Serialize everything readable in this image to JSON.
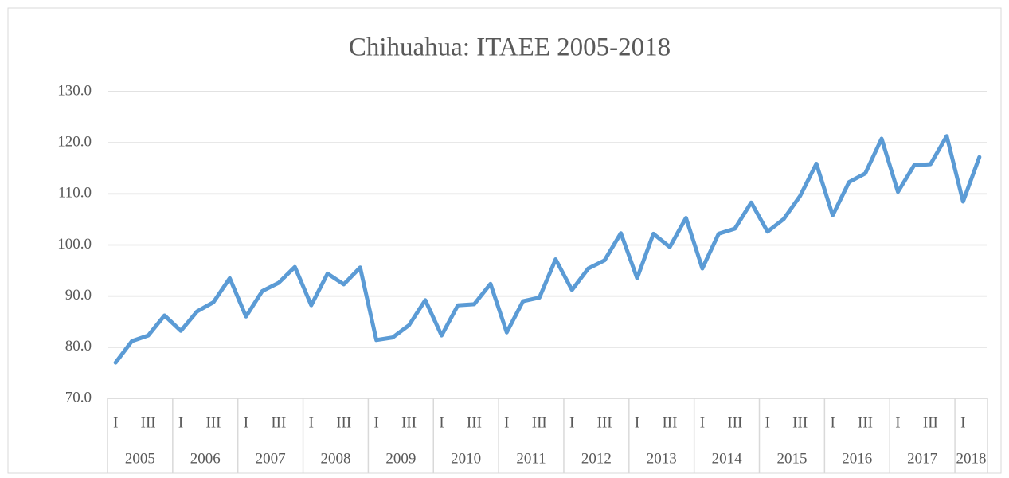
{
  "chart_data": {
    "type": "line",
    "title": "Chihuahua:  ITAEE 2005-2018",
    "categories": [
      "I",
      null,
      "III",
      null,
      "I",
      null,
      "III",
      null,
      "I",
      null,
      "III",
      null,
      "I",
      null,
      "III",
      null,
      "I",
      null,
      "III",
      null,
      "I",
      null,
      "III",
      null,
      "I",
      null,
      "III",
      null,
      "I",
      null,
      "III",
      null,
      "I",
      null,
      "III",
      null,
      "I",
      null,
      "III",
      null,
      "I",
      null,
      "III",
      null,
      "I",
      null,
      "III",
      null,
      "I",
      null,
      "III",
      null,
      "I",
      null
    ],
    "category_groups": [
      "2005",
      "2006",
      "2007",
      "2008",
      "2009",
      "2010",
      "2011",
      "2012",
      "2013",
      "2014",
      "2015",
      "2016",
      "2017",
      "2018"
    ],
    "series": [
      {
        "name": "ITAEE",
        "color": "#5b9bd5",
        "values": [
          77.0,
          81.2,
          82.3,
          86.2,
          83.2,
          87.0,
          88.8,
          93.5,
          86.0,
          91.0,
          92.6,
          95.7,
          88.2,
          94.4,
          92.3,
          95.6,
          81.4,
          81.9,
          84.3,
          89.2,
          82.3,
          88.2,
          88.4,
          92.4,
          82.9,
          89.0,
          89.7,
          97.2,
          91.2,
          95.4,
          97.0,
          102.3,
          93.5,
          102.2,
          99.6,
          105.3,
          95.4,
          102.2,
          103.2,
          108.3,
          102.6,
          105.1,
          109.6,
          115.9,
          105.8,
          112.3,
          114.0,
          120.8,
          110.4,
          115.6,
          115.8,
          121.3,
          108.5,
          117.2
        ]
      }
    ],
    "ylim": [
      70,
      130
    ],
    "yticks": [
      {
        "value": 70,
        "label": "70.0"
      },
      {
        "value": 80,
        "label": "80.0"
      },
      {
        "value": 90,
        "label": "90.0"
      },
      {
        "value": 100,
        "label": "100.0"
      },
      {
        "value": 110,
        "label": "110.0"
      },
      {
        "value": 120,
        "label": "120.0"
      },
      {
        "value": 130,
        "label": "130.0"
      }
    ],
    "grid": true
  }
}
